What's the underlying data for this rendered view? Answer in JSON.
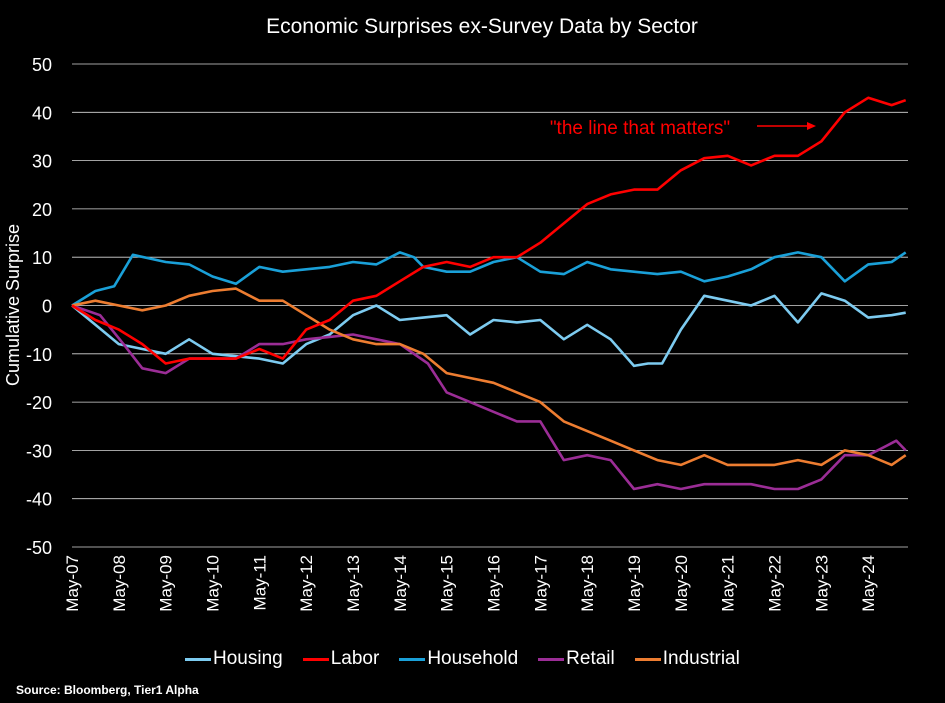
{
  "chart_data": {
    "type": "line",
    "title": "Economic Surprises ex-Survey Data by Sector",
    "ylabel": "Cumulative Surprise",
    "xlabel": "",
    "ylim": [
      -50,
      50
    ],
    "yticks": [
      50,
      40,
      30,
      20,
      10,
      0,
      -10,
      -20,
      -30,
      -40,
      -50
    ],
    "xticks": [
      "May-07",
      "May-08",
      "May-09",
      "May-10",
      "May-11",
      "May-12",
      "May-13",
      "May-14",
      "May-15",
      "May-16",
      "May-17",
      "May-18",
      "May-19",
      "May-20",
      "May-21",
      "May-22",
      "May-23",
      "May-24"
    ],
    "x_unit": "years since May-07",
    "xlim": [
      0,
      17.85
    ],
    "grid": "horizontal",
    "legend_position": "bottom",
    "annotation": {
      "text": "\"the line that matters\"",
      "color": "#FF0000",
      "points_to": "Labor",
      "at_x": 16.0,
      "at_y": 37
    },
    "series": [
      {
        "name": "Housing",
        "color": "#7DCBF0",
        "x": [
          0,
          0.5,
          1,
          1.5,
          2,
          2.5,
          3,
          3.5,
          4,
          4.5,
          5,
          5.5,
          6,
          6.5,
          7,
          7.5,
          8,
          8.5,
          9,
          9.5,
          10,
          10.5,
          11,
          11.5,
          12,
          12.3,
          12.6,
          13,
          13.5,
          14,
          14.5,
          15,
          15.5,
          16,
          16.5,
          17,
          17.5,
          17.8
        ],
        "values": [
          0,
          -4,
          -8,
          -9,
          -10,
          -7,
          -10,
          -10.5,
          -11,
          -12,
          -8,
          -6,
          -2,
          0,
          -3,
          -2.5,
          -2,
          -6,
          -3,
          -3.5,
          -3,
          -7,
          -4,
          -7,
          -12.5,
          -12,
          -12,
          -5,
          2,
          1,
          0,
          2,
          -3.5,
          2.5,
          1,
          -2.5,
          -2,
          -1.5
        ]
      },
      {
        "name": "Labor",
        "color": "#FF0000",
        "x": [
          0,
          0.5,
          1,
          1.5,
          2,
          2.5,
          3,
          3.5,
          4,
          4.5,
          5,
          5.5,
          6,
          6.5,
          7,
          7.5,
          8,
          8.5,
          9,
          9.5,
          10,
          10.5,
          11,
          11.5,
          12,
          12.5,
          13,
          13.5,
          14,
          14.5,
          15,
          15.5,
          16,
          16.5,
          17,
          17.5,
          17.8
        ],
        "values": [
          0,
          -3,
          -5,
          -8,
          -12,
          -11,
          -11,
          -11,
          -9,
          -11,
          -5,
          -3,
          1,
          2,
          5,
          8,
          9,
          8,
          10,
          10,
          13,
          17,
          21,
          23,
          24,
          24,
          28,
          30.5,
          31,
          29,
          31,
          31,
          34,
          40,
          43,
          41.5,
          42.5
        ]
      },
      {
        "name": "Household",
        "color": "#1AA0D8",
        "x": [
          0,
          0.5,
          0.9,
          1.3,
          2,
          2.5,
          3,
          3.5,
          4,
          4.5,
          5,
          5.5,
          6,
          6.5,
          7,
          7.3,
          7.5,
          8,
          8.5,
          9,
          9.5,
          10,
          10.5,
          11,
          11.5,
          12,
          12.5,
          13,
          13.5,
          14,
          14.5,
          15,
          15.5,
          16,
          16.5,
          17,
          17.5,
          17.8
        ],
        "values": [
          0,
          3,
          4,
          10.5,
          9,
          8.5,
          6,
          4.5,
          8,
          7,
          7.5,
          8,
          9,
          8.5,
          11,
          10,
          8,
          7,
          7,
          9,
          10,
          7,
          6.5,
          9,
          7.5,
          7,
          6.5,
          7,
          5,
          6,
          7.5,
          10,
          11,
          10,
          5,
          8.5,
          9,
          11
        ]
      },
      {
        "name": "Retail",
        "color": "#9B2D96",
        "x": [
          0,
          0.6,
          1.1,
          1.5,
          2,
          2.5,
          3,
          3.5,
          4,
          4.5,
          5,
          5.5,
          6,
          6.5,
          7,
          7.6,
          8,
          8.5,
          9,
          9.5,
          10,
          10.5,
          11,
          11.5,
          12,
          12.5,
          13,
          13.5,
          14,
          14.5,
          15,
          15.5,
          16,
          16.5,
          17,
          17.4,
          17.6,
          17.8
        ],
        "values": [
          0,
          -2,
          -8,
          -13,
          -14,
          -11,
          -11,
          -11,
          -8,
          -8,
          -7,
          -6.5,
          -6,
          -7,
          -8,
          -12,
          -18,
          -20,
          -22,
          -24,
          -24,
          -32,
          -31,
          -32,
          -38,
          -37,
          -38,
          -37,
          -37,
          -37,
          -38,
          -38,
          -36,
          -31,
          -31,
          -29,
          -28,
          -30
        ]
      },
      {
        "name": "Industrial",
        "color": "#ED7D31",
        "x": [
          0,
          0.5,
          1,
          1.5,
          2,
          2.5,
          3,
          3.5,
          4,
          4.5,
          5,
          5.5,
          6,
          6.5,
          7,
          7.5,
          8,
          8.5,
          9,
          9.5,
          10,
          10.5,
          11,
          11.5,
          12,
          12.5,
          13,
          13.5,
          14,
          14.5,
          15,
          15.5,
          16,
          16.5,
          17,
          17.5,
          17.8
        ],
        "values": [
          0,
          1,
          0,
          -1,
          0,
          2,
          3,
          3.5,
          1,
          1,
          -2,
          -5,
          -7,
          -8,
          -8,
          -10,
          -14,
          -15,
          -16,
          -18,
          -20,
          -24,
          -26,
          -28,
          -30,
          -32,
          -33,
          -31,
          -33,
          -33,
          -33,
          -32,
          -33,
          -30,
          -31,
          -33,
          -31
        ]
      }
    ]
  },
  "source": "Source: Bloomberg, Tier1 Alpha"
}
